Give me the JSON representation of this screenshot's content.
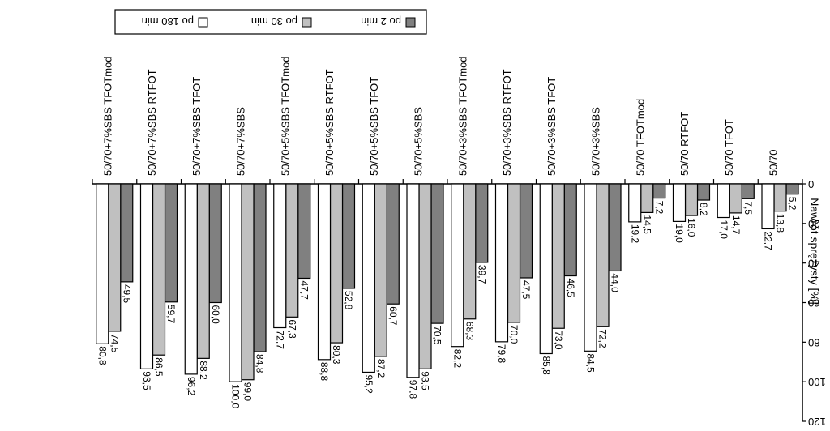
{
  "chart_data": {
    "type": "bar",
    "orientation": "rotated-180",
    "ylabel": "Nawrót sprężysty [%]",
    "ylim": [
      0,
      120
    ],
    "yticks": [
      0,
      20,
      40,
      60,
      80,
      100,
      120
    ],
    "categories": [
      "50/70",
      "50/70 TFOT",
      "50/70 RTFOT",
      "50/70 TFOTmod",
      "50/70+3%SBS",
      "50/70+3%SBS TFOT",
      "50/70+3%SBS RTFOT",
      "50/70+3%SBS TFOTmod",
      "50/70+5%SBS",
      "50/70+5%SBS TFOT",
      "50/70+5%SBS RTFOT",
      "50/70+5%SBS TFOTmod",
      "50/70+7%SBS",
      "50/70+7%SBS TFOT",
      "50/70+7%SBS RTFOT",
      "50/70+7%SBS TFOTmod"
    ],
    "series": [
      {
        "name": "po 2 min",
        "color": "#808080",
        "values": [
          5.2,
          7.5,
          8.2,
          7.2,
          44.0,
          46.5,
          47.5,
          39.7,
          70.5,
          60.7,
          52.8,
          47.7,
          84.8,
          60.0,
          59.7,
          49.5
        ],
        "labels": [
          "5,2",
          "7,5",
          "8,2",
          "7,2",
          "44,0",
          "46,5",
          "47,5",
          "39,7",
          "70,5",
          "60,7",
          "52,8",
          "47,7",
          "84,8",
          "60,0",
          "59,7",
          "49,5"
        ]
      },
      {
        "name": "po 30 min",
        "color": "#c0c0c0",
        "values": [
          13.8,
          14.7,
          16.0,
          14.5,
          72.2,
          73.0,
          70.0,
          68.3,
          93.5,
          87.2,
          80.3,
          67.3,
          99.0,
          88.2,
          86.5,
          74.5
        ],
        "labels": [
          "13,8",
          "14,7",
          "16,0",
          "14,5",
          "72,2",
          "73,0",
          "70,0",
          "68,3",
          "93,5",
          "87,2",
          "80,3",
          "67,3",
          "99,0",
          "88,2",
          "86,5",
          "74,5"
        ]
      },
      {
        "name": "po 180 min",
        "color": "#ffffff",
        "values": [
          22.7,
          17.0,
          19.0,
          19.2,
          84.5,
          85.8,
          79.8,
          82.2,
          97.8,
          95.2,
          88.8,
          72.7,
          100.0,
          96.2,
          93.5,
          80.8
        ],
        "labels": [
          "22,7",
          "17,0",
          "19,0",
          "19,2",
          "84,5",
          "85,8",
          "79,8",
          "82,2",
          "97,8",
          "95,2",
          "88,8",
          "72,7",
          "100,0",
          "96,2",
          "93,5",
          "80,8"
        ]
      }
    ],
    "grid": false,
    "legend": "bottom-left"
  }
}
